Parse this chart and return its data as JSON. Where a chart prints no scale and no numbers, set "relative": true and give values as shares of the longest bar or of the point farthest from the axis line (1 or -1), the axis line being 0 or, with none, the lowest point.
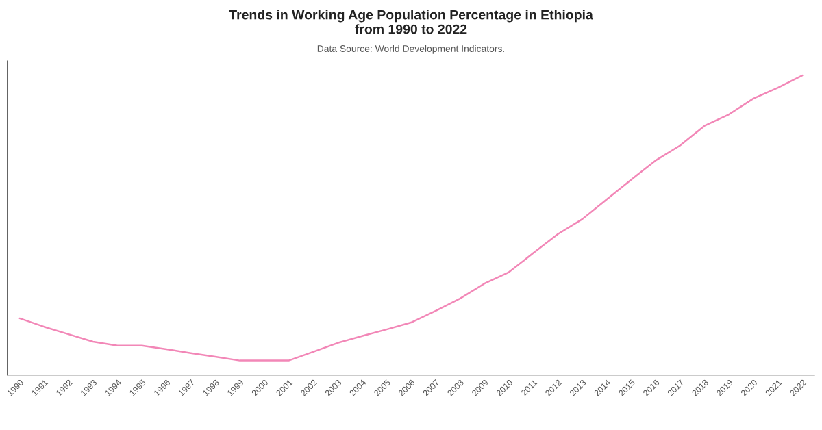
{
  "chart_data": {
    "type": "line",
    "title": "Trends in Working Age Population Percentage in Ethiopia\nfrom 1990 to 2022",
    "subtitle": "Data Source: World Development Indicators.",
    "relative": true,
    "categories": [
      "1990",
      "1991",
      "1992",
      "1993",
      "1994",
      "1995",
      "1996",
      "1997",
      "1998",
      "1999",
      "2000",
      "2001",
      "2002",
      "2003",
      "2004",
      "2005",
      "2006",
      "2007",
      "2008",
      "2009",
      "2010",
      "2011",
      "2012",
      "2013",
      "2014",
      "2015",
      "2016",
      "2017",
      "2018",
      "2019",
      "2020",
      "2021",
      "2022"
    ],
    "series": [
      {
        "color": "#f287b7",
        "values": [
          0.189,
          0.161,
          0.136,
          0.111,
          0.098,
          0.098,
          0.086,
          0.073,
          0.061,
          0.048,
          0.048,
          0.048,
          0.077,
          0.107,
          0.13,
          0.152,
          0.175,
          0.214,
          0.255,
          0.305,
          0.343,
          0.407,
          0.47,
          0.52,
          0.586,
          0.652,
          0.716,
          0.766,
          0.832,
          0.87,
          0.923,
          0.959,
          1.0
        ]
      }
    ],
    "grid": false,
    "legend": false,
    "marker": "none",
    "line_style": "solid"
  }
}
